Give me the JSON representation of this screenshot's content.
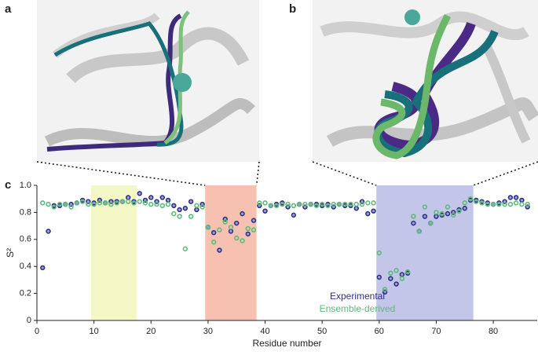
{
  "panel_labels": [
    "a",
    "b",
    "c"
  ],
  "chart_data": {
    "type": "scatter",
    "xlabel": "Residue number",
    "ylabel": "S²",
    "xlim": [
      0,
      87.7
    ],
    "ylim": [
      0,
      1
    ],
    "xticks": [
      0,
      10,
      20,
      30,
      40,
      50,
      60,
      70,
      80
    ],
    "yticks": [
      0,
      0.2,
      0.4,
      0.6,
      0.8,
      {
        "value": 1,
        "label": "1.0"
      }
    ],
    "highlights": [
      {
        "range": [
          9.5,
          17.5
        ],
        "color": "#f4f7c6"
      },
      {
        "range": [
          29.5,
          38.5
        ],
        "color": "#f6c1b0"
      },
      {
        "range": [
          59.5,
          76.5
        ],
        "color": "#c3c6e8"
      }
    ],
    "x": [
      1,
      2,
      3,
      4,
      5,
      6,
      7,
      8,
      9,
      10,
      11,
      12,
      13,
      14,
      15,
      16,
      17,
      18,
      19,
      20,
      21,
      22,
      23,
      24,
      25,
      26,
      27,
      28,
      29,
      30,
      31,
      32,
      33,
      34,
      35,
      36,
      37,
      38,
      39,
      40,
      41,
      42,
      43,
      44,
      45,
      46,
      47,
      48,
      49,
      50,
      51,
      52,
      53,
      54,
      55,
      56,
      57,
      58,
      59,
      60,
      61,
      62,
      63,
      64,
      65,
      66,
      67,
      68,
      69,
      70,
      71,
      72,
      73,
      74,
      75,
      76,
      77,
      78,
      79,
      80,
      81,
      82,
      83,
      84,
      85,
      86
    ],
    "series": [
      {
        "name": "Experimental",
        "color": "#2e2f86",
        "values": [
          0.39,
          0.66,
          0.85,
          0.85,
          0.86,
          0.86,
          0.87,
          0.89,
          0.88,
          0.87,
          0.89,
          0.87,
          0.88,
          0.88,
          0.88,
          0.91,
          0.88,
          0.94,
          0.89,
          0.91,
          0.88,
          0.91,
          0.89,
          0.85,
          0.82,
          0.83,
          0.88,
          0.82,
          0.86,
          0.69,
          0.65,
          0.52,
          0.75,
          0.66,
          0.72,
          0.79,
          0.64,
          0.74,
          0.85,
          0.81,
          0.85,
          0.86,
          0.87,
          0.84,
          0.78,
          0.86,
          0.84,
          0.86,
          0.86,
          0.85,
          0.86,
          0.84,
          0.86,
          0.85,
          0.85,
          0.83,
          0.88,
          0.79,
          0.81,
          0.32,
          0.21,
          0.31,
          0.27,
          0.34,
          0.35,
          0.72,
          0.66,
          0.77,
          0.72,
          0.77,
          0.78,
          0.79,
          0.8,
          0.82,
          0.83,
          0.89,
          0.89,
          0.88,
          0.87,
          0.86,
          0.87,
          0.88,
          0.91,
          0.91,
          0.89,
          0.84
        ]
      },
      {
        "name": "Ensemble-derived",
        "color": "#5dbb7a",
        "values": [
          0.87,
          0.86,
          0.84,
          0.86,
          0.86,
          0.84,
          0.87,
          0.88,
          0.86,
          0.86,
          0.87,
          0.87,
          0.86,
          0.87,
          0.88,
          0.88,
          0.87,
          0.88,
          0.87,
          0.86,
          0.86,
          0.85,
          0.86,
          0.79,
          0.77,
          0.53,
          0.77,
          0.85,
          0.84,
          0.69,
          0.58,
          0.67,
          0.73,
          0.69,
          0.61,
          0.59,
          0.68,
          0.67,
          0.87,
          0.87,
          0.85,
          0.85,
          0.86,
          0.86,
          0.85,
          0.86,
          0.86,
          0.86,
          0.85,
          0.86,
          0.85,
          0.86,
          0.86,
          0.86,
          0.86,
          0.86,
          0.86,
          0.87,
          0.87,
          0.5,
          0.23,
          0.35,
          0.37,
          0.31,
          0.36,
          0.77,
          0.66,
          0.84,
          0.72,
          0.8,
          0.79,
          0.84,
          0.78,
          0.81,
          0.87,
          0.9,
          0.88,
          0.87,
          0.86,
          0.86,
          0.86,
          0.86,
          0.86,
          0.87,
          0.86,
          0.86
        ]
      }
    ]
  }
}
